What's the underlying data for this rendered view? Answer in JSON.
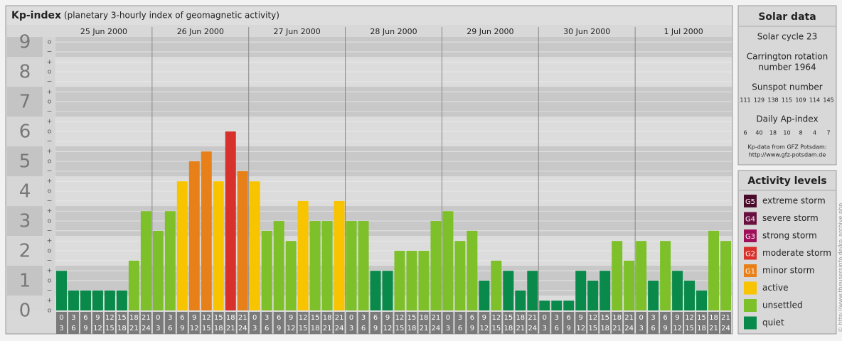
{
  "chart_data": {
    "type": "bar",
    "title": "Kp-index",
    "subtitle": "(planetary 3-hourly index of geomagnetic activity)",
    "days": [
      "25 Jun 2000",
      "26 Jun 2000",
      "27 Jun 2000",
      "28 Jun 2000",
      "29 Jun 2000",
      "30 Jun 2000",
      "1 Jul 2000"
    ],
    "hours": [
      [
        "0",
        "3"
      ],
      [
        "3",
        "6"
      ],
      [
        "6",
        "9"
      ],
      [
        "9",
        "12"
      ],
      [
        "12",
        "15"
      ],
      [
        "15",
        "18"
      ],
      [
        "18",
        "21"
      ],
      [
        "21",
        "24"
      ]
    ],
    "ylim": [
      0,
      9.17
    ],
    "yticks": [
      0,
      1,
      2,
      3,
      4,
      5,
      6,
      7,
      8,
      9
    ],
    "subticks": [
      {
        "value": 0,
        "label": "o"
      },
      {
        "value": 0.33,
        "label": "+"
      },
      {
        "value": 0.67,
        "label": "−"
      },
      {
        "value": 1,
        "label": "o"
      },
      {
        "value": 1.33,
        "label": "+"
      },
      {
        "value": 1.67,
        "label": "−"
      },
      {
        "value": 2,
        "label": "o"
      },
      {
        "value": 2.33,
        "label": "+"
      },
      {
        "value": 2.67,
        "label": "−"
      },
      {
        "value": 3,
        "label": "o"
      },
      {
        "value": 3.33,
        "label": "+"
      },
      {
        "value": 3.67,
        "label": "−"
      },
      {
        "value": 4,
        "label": "o"
      },
      {
        "value": 4.33,
        "label": "+"
      },
      {
        "value": 4.67,
        "label": "−"
      },
      {
        "value": 5,
        "label": "o"
      },
      {
        "value": 5.33,
        "label": "+"
      },
      {
        "value": 5.67,
        "label": "−"
      },
      {
        "value": 6,
        "label": "o"
      },
      {
        "value": 6.33,
        "label": "+"
      },
      {
        "value": 6.67,
        "label": "−"
      },
      {
        "value": 7,
        "label": "o"
      },
      {
        "value": 7.33,
        "label": "+"
      },
      {
        "value": 7.67,
        "label": "−"
      },
      {
        "value": 8,
        "label": "o"
      },
      {
        "value": 8.33,
        "label": "+"
      },
      {
        "value": 8.67,
        "label": "−"
      },
      {
        "value": 9,
        "label": "o"
      }
    ],
    "values": [
      1.33,
      0.67,
      0.67,
      0.67,
      0.67,
      0.67,
      1.67,
      3.33,
      2.67,
      3.33,
      4.33,
      5,
      5.33,
      4.33,
      6,
      4.67,
      4.33,
      2.67,
      3,
      2.33,
      3.67,
      3,
      3,
      3.67,
      3,
      3,
      1.33,
      1.33,
      2,
      2,
      2,
      3,
      3.33,
      2.33,
      2.67,
      1,
      1.67,
      1.33,
      0.67,
      1.33,
      0.33,
      0.33,
      0.33,
      1.33,
      1,
      1.33,
      2.33,
      1.67,
      2.33,
      1,
      2.33,
      1.33,
      1,
      0.67,
      2.67,
      2.33
    ],
    "colors": [
      "#0a8a4a",
      "#0a8a4a",
      "#0a8a4a",
      "#0a8a4a",
      "#0a8a4a",
      "#0a8a4a",
      "#7dc02a",
      "#7dc02a",
      "#7dc02a",
      "#7dc02a",
      "#f8c400",
      "#e8801a",
      "#e8801a",
      "#f8c400",
      "#d8302a",
      "#e8801a",
      "#f8c400",
      "#7dc02a",
      "#7dc02a",
      "#7dc02a",
      "#f8c400",
      "#7dc02a",
      "#7dc02a",
      "#f8c400",
      "#7dc02a",
      "#7dc02a",
      "#0a8a4a",
      "#0a8a4a",
      "#7dc02a",
      "#7dc02a",
      "#7dc02a",
      "#7dc02a",
      "#7dc02a",
      "#7dc02a",
      "#7dc02a",
      "#0a8a4a",
      "#7dc02a",
      "#0a8a4a",
      "#0a8a4a",
      "#0a8a4a",
      "#0a8a4a",
      "#0a8a4a",
      "#0a8a4a",
      "#0a8a4a",
      "#0a8a4a",
      "#0a8a4a",
      "#7dc02a",
      "#7dc02a",
      "#7dc02a",
      "#0a8a4a",
      "#7dc02a",
      "#0a8a4a",
      "#0a8a4a",
      "#0a8a4a",
      "#7dc02a",
      "#7dc02a"
    ],
    "solar": {
      "title": "Solar data",
      "cycle": "Solar cycle 23",
      "rotation": [
        "Carrington rotation",
        "number 1964"
      ],
      "sunspot_title": "Sunspot number",
      "sunspots": [
        111,
        129,
        138,
        115,
        109,
        114,
        145
      ],
      "ap_title": "Daily Ap-index",
      "ap": [
        6,
        40,
        18,
        10,
        8,
        4,
        7
      ],
      "source": [
        "Kp-data from GFZ Potsdam:",
        "http://www.gfz-potsdam.de"
      ]
    },
    "legend": {
      "title": "Activity levels",
      "items": [
        {
          "badge": "G5",
          "label": "extreme storm",
          "color": "#4a0a2a"
        },
        {
          "badge": "G4",
          "label": "severe storm",
          "color": "#6a1040"
        },
        {
          "badge": "G3",
          "label": "strong storm",
          "color": "#a0105a"
        },
        {
          "badge": "G2",
          "label": "moderate storm",
          "color": "#d8302a"
        },
        {
          "badge": "G1",
          "label": "minor storm",
          "color": "#e8801a"
        },
        {
          "label": "active",
          "color": "#f8c400"
        },
        {
          "label": "unsettled",
          "color": "#7dc02a"
        },
        {
          "label": "quiet",
          "color": "#0a8a4a"
        }
      ]
    },
    "credit": "© http://www.theusersinfo.de/kp_archive.php"
  }
}
